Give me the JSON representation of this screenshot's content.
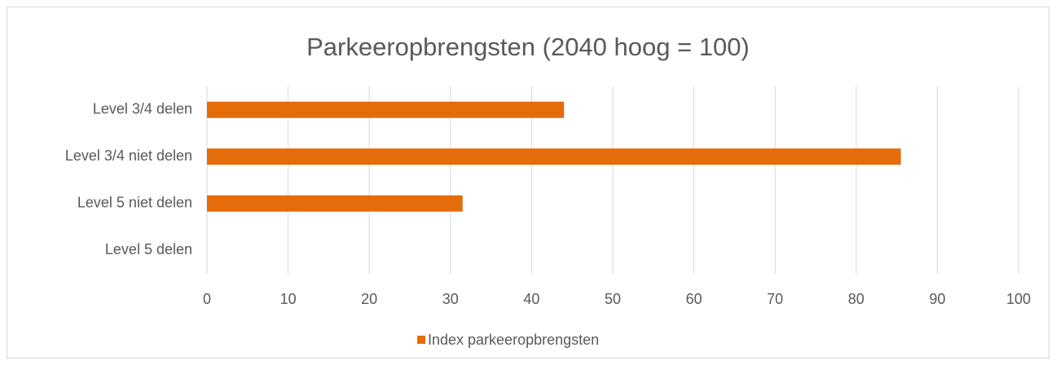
{
  "chart_data": {
    "type": "bar",
    "orientation": "horizontal",
    "title": "Parkeeropbrengsten (2040 hoog = 100)",
    "categories": [
      "Level 3/4 delen",
      "Level 3/4 niet delen",
      "Level 5 niet delen",
      "Level 5 delen"
    ],
    "series": [
      {
        "name": "Index parkeeropbrengsten",
        "color": "#e46c0a",
        "values": [
          44,
          85.5,
          31.5,
          0
        ]
      }
    ],
    "xlim": [
      0,
      100
    ],
    "xticks": [
      0,
      10,
      20,
      30,
      40,
      50,
      60,
      70,
      80,
      90,
      100
    ],
    "grid": true,
    "legend": "bottom"
  }
}
